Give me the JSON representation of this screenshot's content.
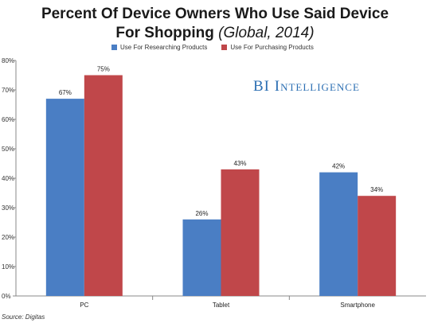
{
  "header": {
    "title_line1": "Percent Of Device Owners Who Use Said Device",
    "title_line2_main": "For Shopping",
    "title_line2_sub": "(Global, 2014)"
  },
  "watermark": "BI Intelligence",
  "source": "Source: Digitas",
  "colors": {
    "series1": "#4a7ec4",
    "series2": "#c0474a",
    "axis": "#888888"
  },
  "chart_data": {
    "type": "bar",
    "title": "Percent Of Device Owners Who Use Said Device For Shopping (Global, 2014)",
    "categories": [
      "PC",
      "Tablet",
      "Smartphone"
    ],
    "series": [
      {
        "name": "Use For Researching Products",
        "values": [
          67,
          26,
          42
        ]
      },
      {
        "name": "Use For Purchasing Products",
        "values": [
          75,
          43,
          34
        ]
      }
    ],
    "ylim": [
      0,
      80
    ],
    "yticks": [
      "0%",
      "10%",
      "20%",
      "30%",
      "40%",
      "50%",
      "60%",
      "70%",
      "80%"
    ],
    "value_suffix": "%",
    "grid": false,
    "legend": "top"
  }
}
